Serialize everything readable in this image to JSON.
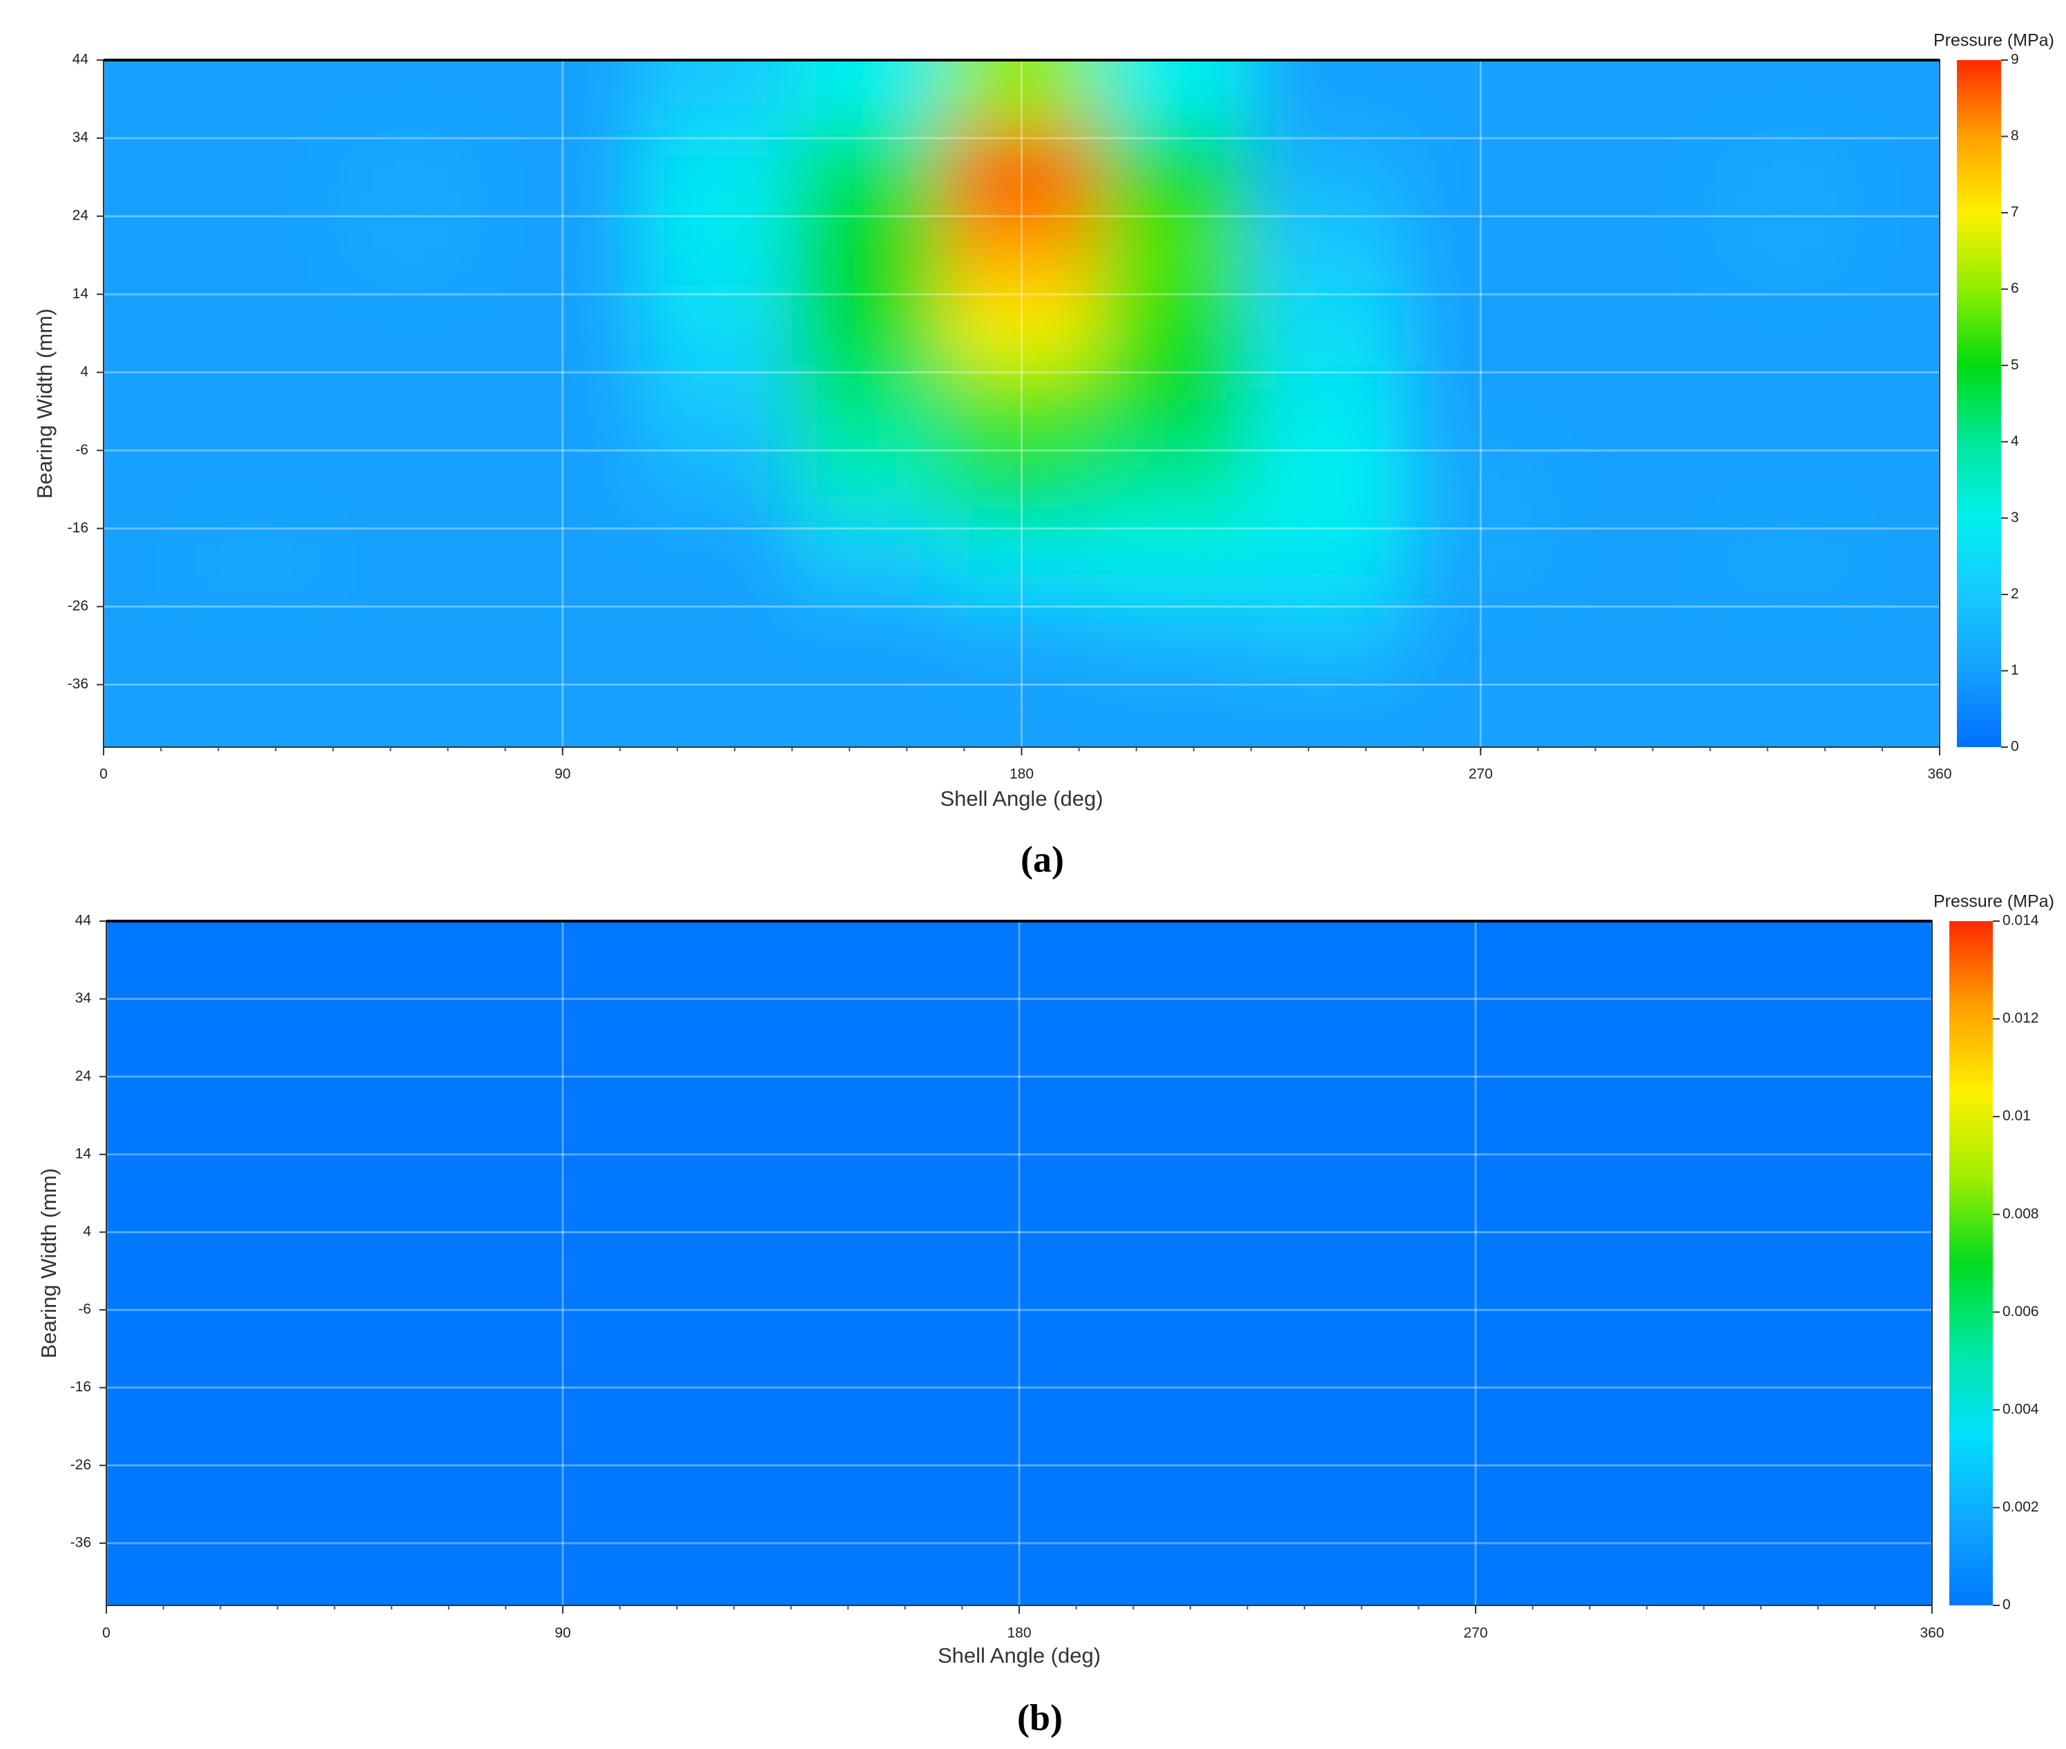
{
  "chart_data": [
    {
      "type": "heatmap",
      "caption": "(a)",
      "xlabel": "Shell Angle (deg)",
      "ylabel": "Bearing Width (mm)",
      "colorbar_label": "Pressure (MPa)",
      "x": [
        0,
        30,
        60,
        90,
        120,
        150,
        180,
        210,
        240,
        270,
        300,
        330,
        360
      ],
      "y": [
        40,
        30,
        20,
        10,
        0,
        -10,
        -20,
        -30,
        -40
      ],
      "values": [
        [
          1,
          1,
          1,
          1,
          2,
          3,
          6,
          3,
          1,
          1,
          1,
          1,
          1
        ],
        [
          1,
          1,
          1.2,
          1,
          2.8,
          4.5,
          8.8,
          5,
          1.5,
          1,
          1,
          1.2,
          1
        ],
        [
          1,
          1,
          1.2,
          1,
          2.8,
          5,
          8,
          5.5,
          2,
          1,
          1,
          1.2,
          1
        ],
        [
          1,
          1,
          1,
          1,
          2.5,
          4.8,
          7,
          5.2,
          2.5,
          1,
          1,
          1,
          1
        ],
        [
          1,
          1,
          1,
          1,
          2,
          4.2,
          5.5,
          4.8,
          2.8,
          1,
          1,
          1,
          1
        ],
        [
          1,
          1,
          1,
          1,
          1.5,
          3.5,
          4.5,
          4,
          3,
          1.2,
          1,
          1,
          1
        ],
        [
          1,
          1.2,
          1,
          1,
          1,
          2,
          2.8,
          3,
          2.8,
          1.2,
          1,
          1.2,
          1
        ],
        [
          1,
          1,
          1,
          1,
          1,
          1,
          1.2,
          1.5,
          1.8,
          1,
          1,
          1,
          1
        ],
        [
          1,
          1,
          1,
          1,
          1,
          1,
          1,
          1,
          1,
          1,
          1,
          1,
          1
        ]
      ],
      "xlim": [
        0,
        360
      ],
      "xticks": [
        0,
        90,
        180,
        270,
        360
      ],
      "ylim": [
        -44,
        44
      ],
      "yticks": [
        44,
        34,
        24,
        14,
        4,
        -6,
        -16,
        -26,
        -36
      ],
      "zlim": [
        0,
        9
      ],
      "zticks": [
        0,
        1,
        2,
        3,
        4,
        5,
        6,
        7,
        8,
        9
      ],
      "colormap": [
        "#0070ff",
        "#14a0ff",
        "#18c8ff",
        "#00f0f0",
        "#00e89a",
        "#00dc10",
        "#90ee00",
        "#fff000",
        "#ffa000",
        "#ff2a00"
      ],
      "grid": true
    },
    {
      "type": "heatmap",
      "caption": "(b)",
      "xlabel": "Shell Angle (deg)",
      "ylabel": "Bearing Width (mm)",
      "colorbar_label": "Pressure (MPa)",
      "x": [
        0,
        30,
        60,
        90,
        120,
        150,
        180,
        210,
        240,
        270,
        300,
        330,
        360
      ],
      "y": [
        40,
        30,
        20,
        10,
        0,
        -10,
        -20,
        -30,
        -40
      ],
      "values": [
        [
          0,
          0,
          0,
          0,
          0,
          0,
          0,
          0,
          0,
          0,
          0,
          0,
          0
        ],
        [
          0,
          0,
          0,
          0,
          0,
          0,
          0,
          0,
          0,
          0,
          0,
          0,
          0
        ],
        [
          0,
          0,
          0,
          0,
          0,
          0,
          0,
          0,
          0,
          0,
          0,
          0,
          0
        ],
        [
          0,
          0,
          0,
          0,
          0,
          0,
          0,
          0,
          0,
          0,
          0,
          0,
          0
        ],
        [
          0,
          0,
          0,
          0,
          0,
          0,
          0,
          0,
          0,
          0,
          0,
          0,
          0
        ],
        [
          0,
          0,
          0,
          0,
          0,
          0,
          0,
          0,
          0,
          0,
          0,
          0,
          0
        ],
        [
          0,
          0,
          0,
          0,
          0,
          0,
          0,
          0,
          0,
          0,
          0,
          0,
          0
        ],
        [
          0,
          0,
          0,
          0,
          0,
          0,
          0,
          0,
          0,
          0,
          0,
          0,
          0
        ],
        [
          0,
          0,
          0,
          0,
          0,
          0,
          0,
          0,
          0,
          0,
          0,
          0,
          0
        ]
      ],
      "xlim": [
        0,
        360
      ],
      "xticks": [
        0,
        90,
        180,
        270,
        360
      ],
      "ylim": [
        -44,
        44
      ],
      "yticks": [
        44,
        34,
        24,
        14,
        4,
        -6,
        -16,
        -26,
        -36
      ],
      "zlim": [
        0,
        0.014
      ],
      "zticks": [
        0,
        0.002,
        0.004,
        0.006,
        0.008,
        0.01,
        0.012,
        0.014
      ],
      "colormap": [
        "#0078ff",
        "#10a8ff",
        "#00e0ff",
        "#00e8a0",
        "#00dc20",
        "#a0ee00",
        "#fff000",
        "#ffa000",
        "#ff2a00"
      ],
      "grid": true
    }
  ]
}
